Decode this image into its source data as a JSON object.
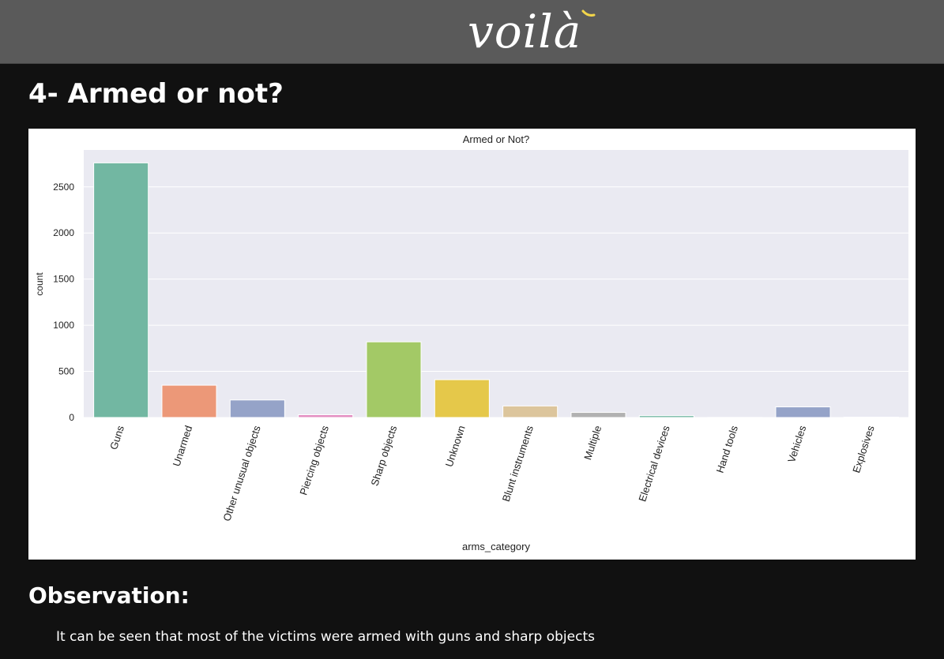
{
  "header": {
    "logo_text": "voilà"
  },
  "section": {
    "title": "4- Armed or not?"
  },
  "observation": {
    "title": "Observation:",
    "text": "It can be seen that most of the victims were armed with guns and sharp objects"
  },
  "chart_data": {
    "type": "bar",
    "title": "Armed or Not?",
    "xlabel": "arms_category",
    "ylabel": "count",
    "categories": [
      "Guns",
      "Unarmed",
      "Other unusual objects",
      "Piercing objects",
      "Sharp objects",
      "Unknown",
      "Blunt instruments",
      "Multiple",
      "Electrical devices",
      "Hand tools",
      "Vehicles",
      "Explosives"
    ],
    "values": [
      2760,
      350,
      190,
      30,
      820,
      410,
      125,
      55,
      20,
      1,
      115,
      4
    ],
    "colors": [
      "#72b7a2",
      "#ec9878",
      "#95a3c8",
      "#e38fc2",
      "#a3c966",
      "#e5c84a",
      "#dcc59c",
      "#b1b1b1",
      "#72b7a2",
      "#ec9878",
      "#95a3c8",
      "#e38fc2"
    ],
    "yticks": [
      0,
      500,
      1000,
      1500,
      2000,
      2500
    ],
    "ylim": [
      0,
      2900
    ],
    "grid": true,
    "background": "#eaeaf2",
    "accent_logo": "#f2d54a"
  }
}
